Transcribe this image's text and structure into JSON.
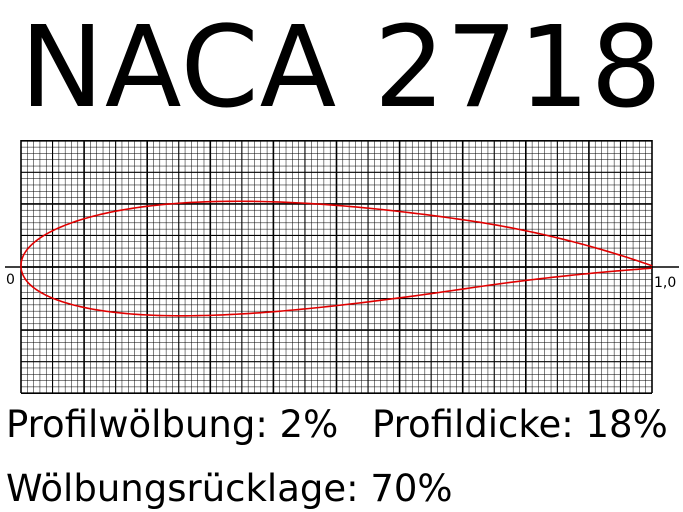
{
  "title": "NACA 2718",
  "airfoil": {
    "max_camber": 0.02,
    "camber_position": 0.7,
    "thickness": 0.18,
    "curve_color": "#e00000"
  },
  "axis": {
    "start_label": "0",
    "end_label": "1,0"
  },
  "captions": {
    "camber": "Profilwölbung: 2%",
    "thickness": "Profildicke: 18%",
    "camber_position": "Wölbungsrücklage: 70%"
  }
}
